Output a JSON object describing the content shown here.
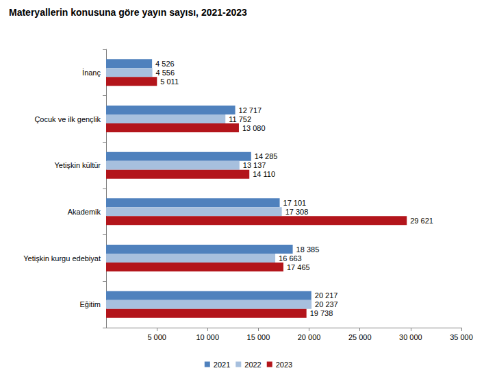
{
  "chart_data": {
    "type": "bar",
    "title": "Materyallerin konusuna göre yayın sayısı, 2021-2023",
    "orientation": "horizontal",
    "categories": [
      "İnanç",
      "Çocuk ve ilk gençlik",
      "Yetişkin kültür",
      "Akademik",
      "Yetişkin kurgu edebiyat",
      "Eğitim"
    ],
    "series": [
      {
        "name": "2021",
        "color": "#4f81bd",
        "values": [
          4526,
          12717,
          14285,
          17101,
          18385,
          20217
        ],
        "value_labels": [
          "4 526",
          "12 717",
          "14 285",
          "17 101",
          "18 385",
          "20 217"
        ]
      },
      {
        "name": "2022",
        "color": "#a7c0de",
        "values": [
          4556,
          11752,
          13137,
          17308,
          16663,
          20237
        ],
        "value_labels": [
          "4 556",
          "11 752",
          "13 137",
          "17 308",
          "16 663",
          "20 237"
        ]
      },
      {
        "name": "2023",
        "color": "#b3151b",
        "values": [
          5011,
          13080,
          14110,
          29621,
          17465,
          19738
        ],
        "value_labels": [
          "5 011",
          "13 080",
          "14 110",
          "29 621",
          "17 465",
          "19 738"
        ]
      }
    ],
    "xlim": [
      0,
      35000
    ],
    "xticks": [
      {
        "value": 5000,
        "label": "5 000"
      },
      {
        "value": 10000,
        "label": "10 000"
      },
      {
        "value": 15000,
        "label": "15 000"
      },
      {
        "value": 20000,
        "label": "20 000"
      },
      {
        "value": 25000,
        "label": "25 000"
      },
      {
        "value": 30000,
        "label": "30 000"
      },
      {
        "value": 35000,
        "label": "35 000"
      }
    ],
    "grid": false,
    "legend": "bottom",
    "data_labels": true
  }
}
